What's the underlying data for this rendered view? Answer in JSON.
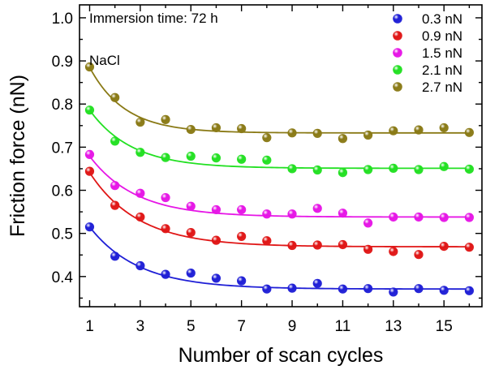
{
  "chart_data": {
    "type": "scatter",
    "xlabel": "Number of scan cycles",
    "ylabel": "Friction force (nN)",
    "xlim": [
      0.6,
      16.5
    ],
    "ylim": [
      0.33,
      1.03
    ],
    "xticks": [
      1,
      3,
      5,
      7,
      9,
      11,
      13,
      15
    ],
    "xtick_labels": [
      "1",
      "3",
      "5",
      "7",
      "9",
      "11",
      "13",
      "15"
    ],
    "yticks": [
      0.4,
      0.5,
      0.6,
      0.7,
      0.8,
      0.9,
      1.0
    ],
    "ytick_labels": [
      "0.4",
      "0.5",
      "0.6",
      "0.7",
      "0.8",
      "0.9",
      "1.0"
    ],
    "annotations": [
      "Immersion time: 72 h",
      "NaCl"
    ],
    "legend_position": "top-right",
    "grid": false,
    "series": [
      {
        "name": "0.3 nN",
        "color": "#1f1fd6",
        "x": [
          1,
          2,
          3,
          4,
          5,
          6,
          7,
          8,
          9,
          10,
          11,
          12,
          13,
          14,
          15,
          16
        ],
        "y": [
          0.515,
          0.447,
          0.425,
          0.405,
          0.408,
          0.396,
          0.39,
          0.371,
          0.373,
          0.384,
          0.371,
          0.372,
          0.364,
          0.372,
          0.368,
          0.367
        ],
        "fit": {
          "a": 0.371,
          "b": 0.144,
          "k": 0.52
        }
      },
      {
        "name": "0.9 nN",
        "color": "#e01616",
        "x": [
          1,
          2,
          3,
          4,
          5,
          6,
          7,
          8,
          9,
          10,
          11,
          12,
          13,
          14,
          15,
          16
        ],
        "y": [
          0.644,
          0.565,
          0.538,
          0.511,
          0.502,
          0.484,
          0.493,
          0.483,
          0.472,
          0.473,
          0.474,
          0.463,
          0.458,
          0.451,
          0.47,
          0.468
        ],
        "fit": {
          "a": 0.469,
          "b": 0.172,
          "k": 0.52
        }
      },
      {
        "name": "1.5 nN",
        "color": "#e616e6",
        "x": [
          1,
          2,
          3,
          4,
          5,
          6,
          7,
          8,
          9,
          10,
          11,
          12,
          13,
          14,
          15,
          16
        ],
        "y": [
          0.683,
          0.611,
          0.593,
          0.583,
          0.563,
          0.555,
          0.555,
          0.545,
          0.545,
          0.558,
          0.547,
          0.524,
          0.538,
          0.538,
          0.537,
          0.537
        ],
        "fit": {
          "a": 0.538,
          "b": 0.141,
          "k": 0.55
        }
      },
      {
        "name": "2.1 nN",
        "color": "#22e022",
        "x": [
          1,
          2,
          3,
          4,
          5,
          6,
          7,
          8,
          9,
          10,
          11,
          12,
          13,
          14,
          15,
          16
        ],
        "y": [
          0.786,
          0.714,
          0.688,
          0.676,
          0.679,
          0.675,
          0.672,
          0.67,
          0.65,
          0.647,
          0.641,
          0.648,
          0.651,
          0.648,
          0.655,
          0.649
        ],
        "fit": {
          "a": 0.651,
          "b": 0.135,
          "k": 0.6
        }
      },
      {
        "name": "2.7 nN",
        "color": "#8a7a16",
        "x": [
          1,
          2,
          3,
          4,
          5,
          6,
          7,
          8,
          9,
          10,
          11,
          12,
          13,
          14,
          15,
          16
        ],
        "y": [
          0.886,
          0.815,
          0.758,
          0.764,
          0.741,
          0.745,
          0.743,
          0.722,
          0.733,
          0.732,
          0.72,
          0.728,
          0.738,
          0.74,
          0.745,
          0.734
        ],
        "fit": {
          "a": 0.733,
          "b": 0.152,
          "k": 0.72
        }
      }
    ]
  }
}
